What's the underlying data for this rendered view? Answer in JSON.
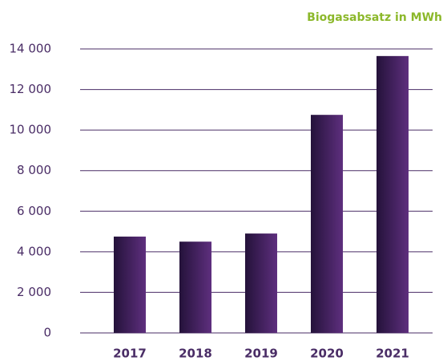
{
  "chart_data": {
    "type": "bar",
    "title": "Biogasabsatz in MWh",
    "categories": [
      "2017",
      "2018",
      "2019",
      "2020",
      "2021"
    ],
    "values": [
      4750,
      4500,
      4900,
      10750,
      13650
    ],
    "color": "#3d1f58",
    "ylim": [
      0,
      14000
    ],
    "yticks": [
      0,
      {
        "value": 2000,
        "label": "2 000"
      },
      {
        "value": 4000,
        "label": "4 000"
      },
      {
        "value": 6000,
        "label": "6 000"
      },
      {
        "value": 8000,
        "label": "8 000"
      },
      {
        "value": 10000,
        "label": "10 000"
      },
      {
        "value": 12000,
        "label": "12 000"
      },
      {
        "value": 14000,
        "label": "14 000"
      }
    ],
    "grid": true
  }
}
